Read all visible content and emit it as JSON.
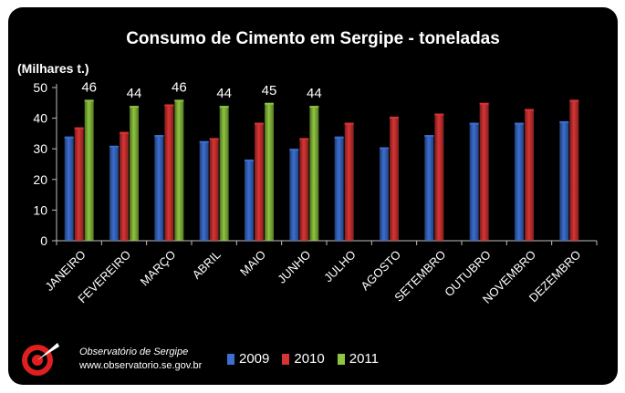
{
  "chart_data": {
    "type": "bar",
    "title": "Consumo de Cimento em Sergipe - toneladas",
    "ylabel": "(Milhares t.)",
    "xlabel": "",
    "ylim": [
      0,
      50
    ],
    "yticks": [
      0,
      10,
      20,
      30,
      40,
      50
    ],
    "grid": false,
    "legend_position": "bottom",
    "categories": [
      "JANEIRO",
      "FEVEREIRO",
      "MARÇO",
      "ABRIL",
      "MAIO",
      "JUNHO",
      "JULHO",
      "AGOSTO",
      "SETEMBRO",
      "OUTUBRO",
      "NOVEMBRO",
      "DEZEMBRO"
    ],
    "series": [
      {
        "name": "2009",
        "color": "#3b6fd1",
        "values": [
          34,
          31,
          34.5,
          32.5,
          26.5,
          30,
          34,
          30.5,
          34.5,
          38.5,
          38.5,
          39
        ]
      },
      {
        "name": "2010",
        "color": "#d93434",
        "values": [
          37,
          35.5,
          44.5,
          33.5,
          38.5,
          33.5,
          38.5,
          40.5,
          41.5,
          45,
          43,
          46
        ]
      },
      {
        "name": "2011",
        "color": "#8ec63f",
        "values": [
          46,
          44,
          46,
          44,
          45,
          44,
          null,
          null,
          null,
          null,
          null,
          null
        ],
        "labels": [
          "46",
          "44",
          "46",
          "44",
          "45",
          "44"
        ]
      }
    ]
  },
  "footer": {
    "org": "Observatório de Sergipe",
    "url": "www.observatorio.se.gov.br"
  }
}
